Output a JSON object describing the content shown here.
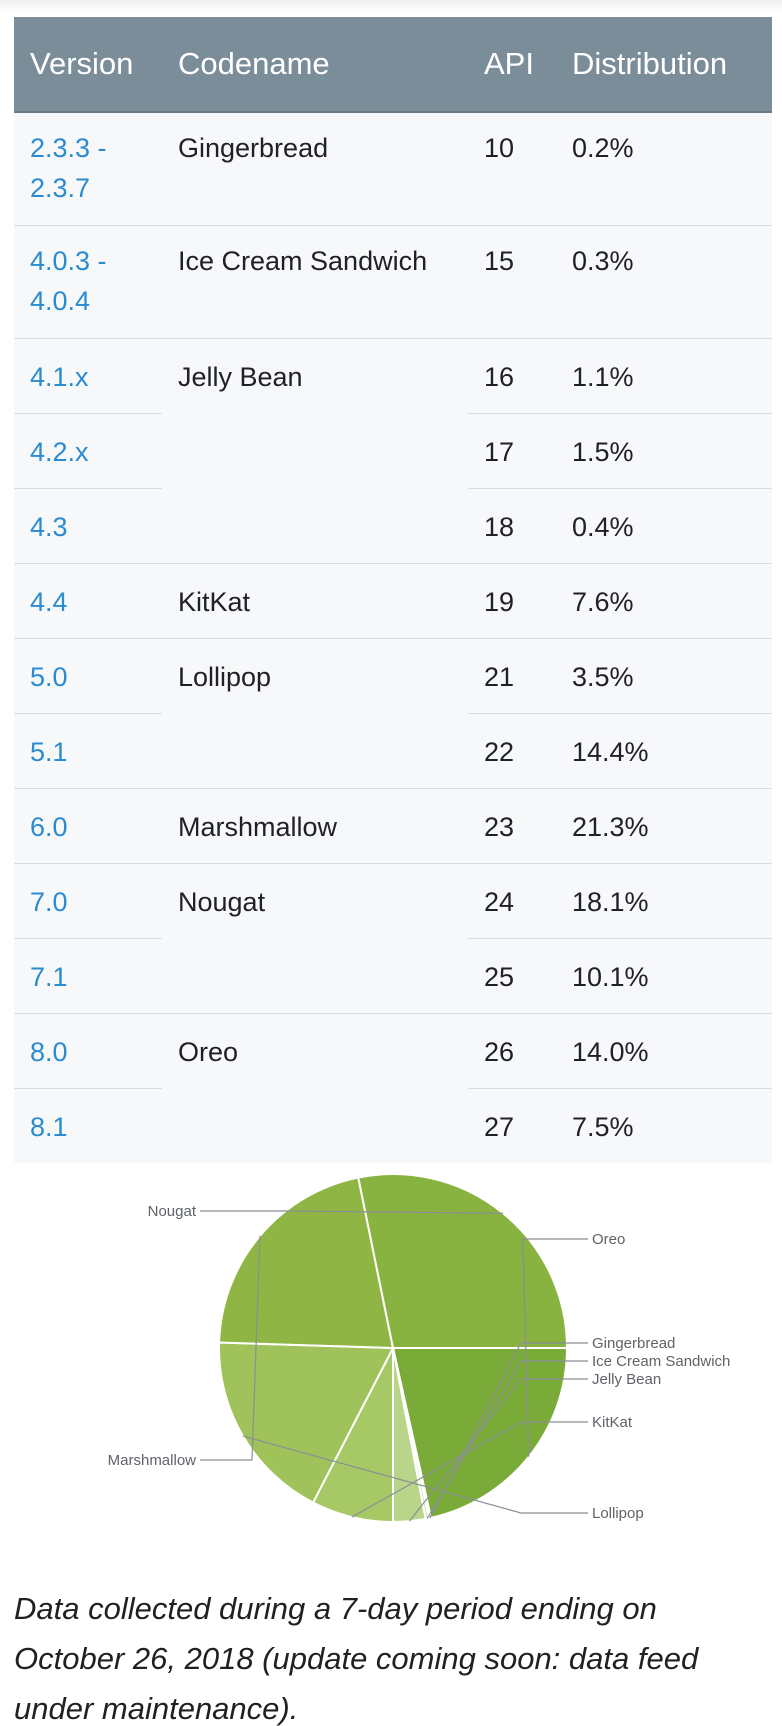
{
  "table": {
    "headers": [
      "Version",
      "Codename",
      "API",
      "Distribution"
    ],
    "rows": [
      {
        "version": "2.3.3 -\n2.3.7",
        "codename": "Gingerbread",
        "api": "10",
        "distribution": "0.2%"
      },
      {
        "version": "4.0.3 -\n4.0.4",
        "codename": "Ice Cream Sandwich",
        "api": "15",
        "distribution": "0.3%"
      },
      {
        "version": "4.1.x",
        "codename": "Jelly Bean",
        "api": "16",
        "distribution": "1.1%"
      },
      {
        "version": "4.2.x",
        "codename": "",
        "api": "17",
        "distribution": "1.5%"
      },
      {
        "version": "4.3",
        "codename": "",
        "api": "18",
        "distribution": "0.4%"
      },
      {
        "version": "4.4",
        "codename": "KitKat",
        "api": "19",
        "distribution": "7.6%"
      },
      {
        "version": "5.0",
        "codename": "Lollipop",
        "api": "21",
        "distribution": "3.5%"
      },
      {
        "version": "5.1",
        "codename": "",
        "api": "22",
        "distribution": "14.4%"
      },
      {
        "version": "6.0",
        "codename": "Marshmallow",
        "api": "23",
        "distribution": "21.3%"
      },
      {
        "version": "7.0",
        "codename": "Nougat",
        "api": "24",
        "distribution": "18.1%"
      },
      {
        "version": "7.1",
        "codename": "",
        "api": "25",
        "distribution": "10.1%"
      },
      {
        "version": "8.0",
        "codename": "Oreo",
        "api": "26",
        "distribution": "14.0%"
      },
      {
        "version": "8.1",
        "codename": "",
        "api": "27",
        "distribution": "7.5%"
      }
    ]
  },
  "chart_data": {
    "type": "pie",
    "title": "",
    "categories": [
      "Oreo",
      "Gingerbread",
      "Ice Cream Sandwich",
      "Jelly Bean",
      "KitKat",
      "Lollipop",
      "Marshmallow",
      "Nougat"
    ],
    "values": [
      21.5,
      0.2,
      0.3,
      3.0,
      7.6,
      17.9,
      21.3,
      28.2
    ],
    "colors": [
      "#7aaa38",
      "#e9f1db",
      "#d3e5b4",
      "#b9d58a",
      "#a7c965",
      "#9fc25a",
      "#8fb644",
      "#88b341"
    ],
    "legend": "callout-labels",
    "start_angle_deg": 0,
    "direction": "clockwise"
  },
  "caption": "Data collected during a 7-day period ending on October 26, 2018 (update coming soon: data feed under maintenance)."
}
